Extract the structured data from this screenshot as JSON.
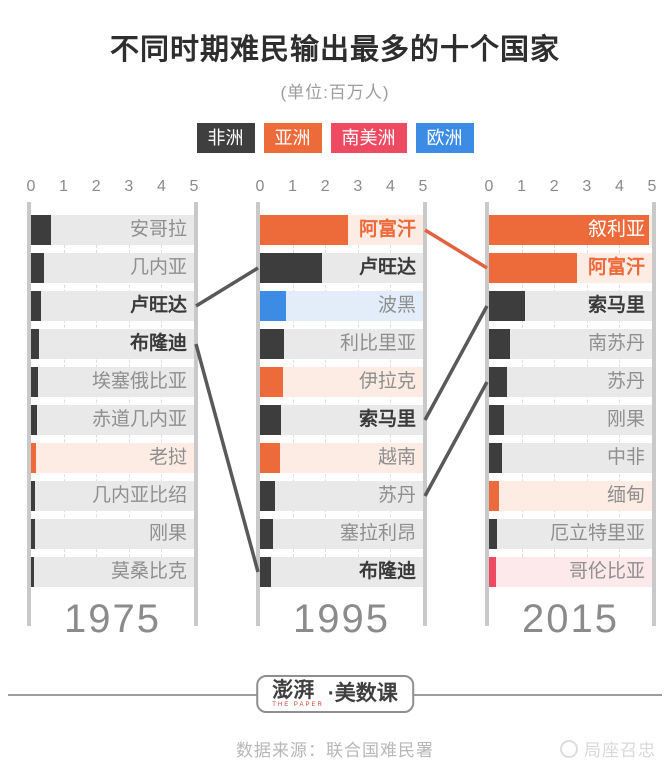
{
  "title": "不同时期难民输出最多的十个国家",
  "subtitle": "(单位:百万人)",
  "legend": [
    {
      "label": "非洲",
      "continent": "africa",
      "color": "#3f3f3f"
    },
    {
      "label": "亚洲",
      "continent": "asia",
      "color": "#ed6a3b"
    },
    {
      "label": "南美洲",
      "continent": "south_america",
      "color": "#ee4a62"
    },
    {
      "label": "欧洲",
      "continent": "europe",
      "color": "#3c8ce6"
    }
  ],
  "chart_data": {
    "type": "bar",
    "title": "不同时期难民输出最多的十个国家",
    "unit": "百万人",
    "xlim": [
      0,
      5
    ],
    "ticks": [
      "0",
      "1",
      "2",
      "3",
      "4",
      "5"
    ],
    "grid": "dashed-vertical",
    "panels": [
      {
        "year": "1975",
        "rows": [
          {
            "country": "安哥拉",
            "value": 0.6,
            "continent": "africa",
            "emphasis": "normal"
          },
          {
            "country": "几内亚",
            "value": 0.4,
            "continent": "africa",
            "emphasis": "normal"
          },
          {
            "country": "卢旺达",
            "value": 0.3,
            "continent": "africa",
            "emphasis": "bold"
          },
          {
            "country": "布隆迪",
            "value": 0.25,
            "continent": "africa",
            "emphasis": "bold"
          },
          {
            "country": "埃塞俄比亚",
            "value": 0.2,
            "continent": "africa",
            "emphasis": "normal"
          },
          {
            "country": "赤道几内亚",
            "value": 0.18,
            "continent": "africa",
            "emphasis": "normal"
          },
          {
            "country": "老挝",
            "value": 0.15,
            "continent": "asia",
            "emphasis": "normal"
          },
          {
            "country": "几内亚比绍",
            "value": 0.13,
            "continent": "africa",
            "emphasis": "normal"
          },
          {
            "country": "刚果",
            "value": 0.12,
            "continent": "africa",
            "emphasis": "normal"
          },
          {
            "country": "莫桑比克",
            "value": 0.1,
            "continent": "africa",
            "emphasis": "normal"
          }
        ]
      },
      {
        "year": "1995",
        "rows": [
          {
            "country": "阿富汗",
            "value": 2.7,
            "continent": "asia",
            "emphasis": "bold-orange"
          },
          {
            "country": "卢旺达",
            "value": 1.9,
            "continent": "africa",
            "emphasis": "bold"
          },
          {
            "country": "波黑",
            "value": 0.8,
            "continent": "europe",
            "emphasis": "normal"
          },
          {
            "country": "利比里亚",
            "value": 0.75,
            "continent": "africa",
            "emphasis": "normal"
          },
          {
            "country": "伊拉克",
            "value": 0.7,
            "continent": "asia",
            "emphasis": "normal"
          },
          {
            "country": "索马里",
            "value": 0.65,
            "continent": "africa",
            "emphasis": "bold"
          },
          {
            "country": "越南",
            "value": 0.6,
            "continent": "asia",
            "emphasis": "normal"
          },
          {
            "country": "苏丹",
            "value": 0.45,
            "continent": "africa",
            "emphasis": "normal"
          },
          {
            "country": "塞拉利昂",
            "value": 0.4,
            "continent": "africa",
            "emphasis": "normal"
          },
          {
            "country": "布隆迪",
            "value": 0.35,
            "continent": "africa",
            "emphasis": "bold"
          }
        ]
      },
      {
        "year": "2015",
        "rows": [
          {
            "country": "叙利亚",
            "value": 4.9,
            "continent": "asia",
            "emphasis": "white"
          },
          {
            "country": "阿富汗",
            "value": 2.7,
            "continent": "asia",
            "emphasis": "bold-orange"
          },
          {
            "country": "索马里",
            "value": 1.1,
            "continent": "africa",
            "emphasis": "bold"
          },
          {
            "country": "南苏丹",
            "value": 0.65,
            "continent": "africa",
            "emphasis": "normal"
          },
          {
            "country": "苏丹",
            "value": 0.55,
            "continent": "africa",
            "emphasis": "normal"
          },
          {
            "country": "刚果",
            "value": 0.45,
            "continent": "africa",
            "emphasis": "normal"
          },
          {
            "country": "中非",
            "value": 0.4,
            "continent": "africa",
            "emphasis": "normal"
          },
          {
            "country": "缅甸",
            "value": 0.3,
            "continent": "asia",
            "emphasis": "normal"
          },
          {
            "country": "厄立特里亚",
            "value": 0.25,
            "continent": "africa",
            "emphasis": "normal"
          },
          {
            "country": "哥伦比亚",
            "value": 0.2,
            "continent": "south_america",
            "emphasis": "normal"
          }
        ]
      }
    ],
    "connections": [
      {
        "country": "卢旺达",
        "from_panel": 0,
        "from_row": 3,
        "to_panel": 1,
        "to_row": 2,
        "color": "#595959"
      },
      {
        "country": "布隆迪",
        "from_panel": 0,
        "from_row": 4,
        "to_panel": 1,
        "to_row": 10,
        "color": "#595959"
      },
      {
        "country": "阿富汗",
        "from_panel": 1,
        "from_row": 1,
        "to_panel": 2,
        "to_row": 2,
        "color": "#e2613e"
      },
      {
        "country": "索马里",
        "from_panel": 1,
        "from_row": 6,
        "to_panel": 2,
        "to_row": 3,
        "color": "#595959"
      },
      {
        "country": "苏丹",
        "from_panel": 1,
        "from_row": 8,
        "to_panel": 2,
        "to_row": 5,
        "color": "#595959"
      }
    ]
  },
  "footer": {
    "brand_cn": "澎湃",
    "brand_en": "THE PAPER",
    "brand_suffix": "·美数课",
    "source": "数据来源：联合国难民署",
    "watermark": "局座召忠"
  }
}
